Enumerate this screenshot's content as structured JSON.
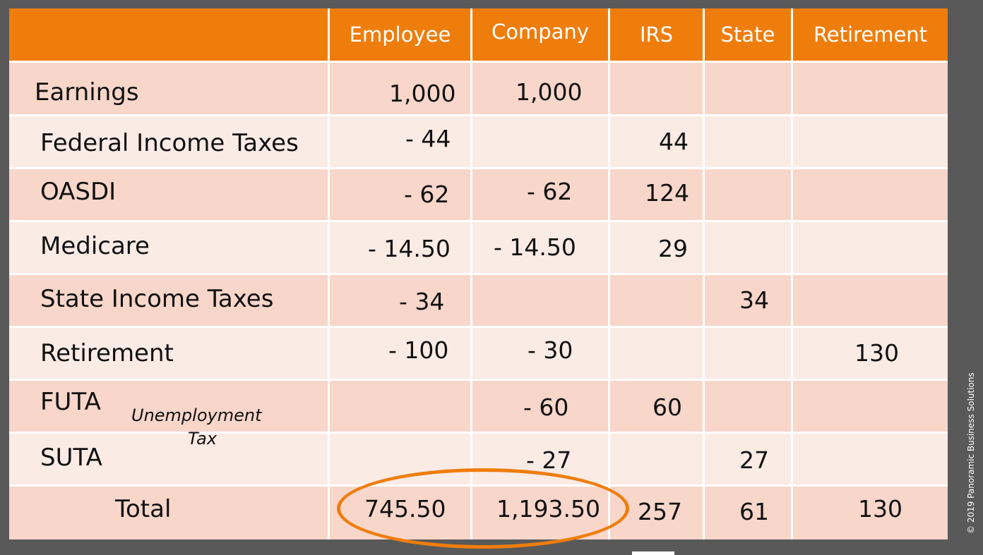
{
  "header": {
    "columns": [
      "Employee",
      "Company",
      "IRS",
      "State",
      "Retirement"
    ]
  },
  "rows": [
    {
      "label": "Earnings",
      "employee": "1,000",
      "company": "1,000",
      "irs": "",
      "state": "",
      "retirement": ""
    },
    {
      "label": "Federal Income Taxes",
      "employee": "- 44",
      "company": "",
      "irs": "44",
      "state": "",
      "retirement": ""
    },
    {
      "label": "OASDI",
      "employee": "- 62",
      "company": "- 62",
      "irs": "124",
      "state": "",
      "retirement": ""
    },
    {
      "label": "Medicare",
      "employee": "- 14.50",
      "company": "- 14.50",
      "irs": "29",
      "state": "",
      "retirement": ""
    },
    {
      "label": "State Income Taxes",
      "employee": "- 34",
      "company": "",
      "irs": "",
      "state": "34",
      "retirement": ""
    },
    {
      "label": "Retirement",
      "employee": "- 100",
      "company": "- 30",
      "irs": "",
      "state": "",
      "retirement": "130"
    },
    {
      "label": "FUTA",
      "employee": "",
      "company": "- 60",
      "irs": "60",
      "state": "",
      "retirement": ""
    },
    {
      "label": "SUTA",
      "employee": "",
      "company": "- 27",
      "irs": "",
      "state": "27",
      "retirement": ""
    },
    {
      "label": "Total",
      "employee": "745.50",
      "company": "1,193.50",
      "irs": "257",
      "state": "61",
      "retirement": "130"
    }
  ],
  "annotation": {
    "line1": "Unemployment",
    "line2": "Tax"
  },
  "copyright": "© 2019 Panoramic Business Solutions",
  "colors": {
    "header": "#ef7d0c",
    "row_dark": "#f8d6ca",
    "row_light": "#fbebe5",
    "background": "#595959",
    "highlight": "#ef7d0c"
  }
}
